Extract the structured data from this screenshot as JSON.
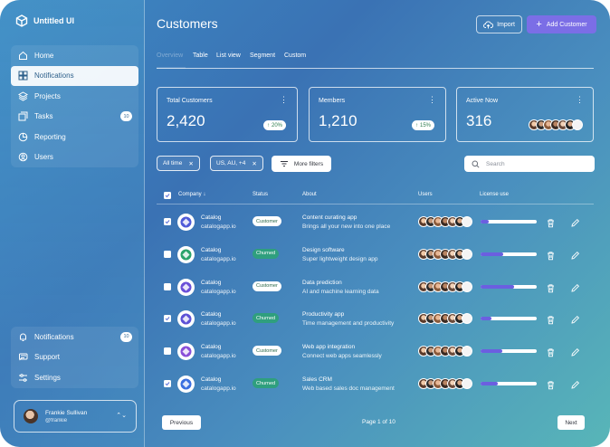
{
  "app": {
    "name": "Untitled UI"
  },
  "sidebar": {
    "nav_top": [
      {
        "label": "Home",
        "icon": "home-icon"
      },
      {
        "label": "Notifications",
        "icon": "grid-icon",
        "active": true
      },
      {
        "label": "Projects",
        "icon": "layers-icon"
      },
      {
        "label": "Tasks",
        "icon": "tasks-icon",
        "badge": "10"
      },
      {
        "label": "Reporting",
        "icon": "pie-chart-icon"
      },
      {
        "label": "Users",
        "icon": "user-icon"
      }
    ],
    "nav_bottom": [
      {
        "label": "Notifications",
        "icon": "bell-icon",
        "badge": "10"
      },
      {
        "label": "Support",
        "icon": "support-icon"
      },
      {
        "label": "Settings",
        "icon": "settings-icon"
      }
    ],
    "user": {
      "name": "Frankie Sullivan",
      "handle": "@frankie"
    }
  },
  "header": {
    "title": "Customers",
    "import_label": "Import",
    "add_label": "Add Customer"
  },
  "tabs": [
    "Overview",
    "Table",
    "List view",
    "Segment",
    "Custom"
  ],
  "stats": [
    {
      "label": "Total Customers",
      "value": "2,420",
      "trend": "20%"
    },
    {
      "label": "Members",
      "value": "1,210",
      "trend": "15%"
    },
    {
      "label": "Active Now",
      "value": "316"
    }
  ],
  "filters": {
    "chips": [
      "All time",
      "US, AU, +4"
    ],
    "more_label": "More filters",
    "search_placeholder": "Search"
  },
  "table": {
    "columns": [
      "Company",
      "Status",
      "About",
      "Users",
      "License use"
    ],
    "rows": [
      {
        "checked": true,
        "name": "Catalog",
        "url": "catalogapp.io",
        "status": "Customer",
        "about_title": "Content curating app",
        "about_desc": "Brings all your new into one place",
        "license": 0.14,
        "logo": "#4f5ad8"
      },
      {
        "checked": false,
        "name": "Catalog",
        "url": "catalogapp.io",
        "status": "Churned",
        "about_title": "Design software",
        "about_desc": "Super lightweight design app",
        "license": 0.4,
        "logo": "#2aa36b"
      },
      {
        "checked": false,
        "name": "Catalog",
        "url": "catalogapp.io",
        "status": "Customer",
        "about_title": "Data prediction",
        "about_desc": "AI and machine learning data",
        "license": 0.6,
        "logo": "#6a4fd8"
      },
      {
        "checked": true,
        "name": "Catalog",
        "url": "catalogapp.io",
        "status": "Churned",
        "about_title": "Productivity app",
        "about_desc": "Time management and productivity",
        "license": 0.2,
        "logo": "#5d52d6"
      },
      {
        "checked": false,
        "name": "Catalog",
        "url": "catalogapp.io",
        "status": "Customer",
        "about_title": "Web app integration",
        "about_desc": "Connect web apps seamlessly",
        "license": 0.38,
        "logo": "#8a4fd8"
      },
      {
        "checked": true,
        "name": "Catalog",
        "url": "catalogapp.io",
        "status": "Churned",
        "about_title": "Sales CRM",
        "about_desc": "Web based sales doc management",
        "license": 0.3,
        "logo": "#3b6fe0"
      }
    ]
  },
  "pagination": {
    "prev": "Previous",
    "info": "Page 1 of 10",
    "next": "Next"
  },
  "colors": {
    "accent": "#7b6ee6",
    "license_fill": "#6b5fe0",
    "trend_green": "#2e7d4f"
  }
}
